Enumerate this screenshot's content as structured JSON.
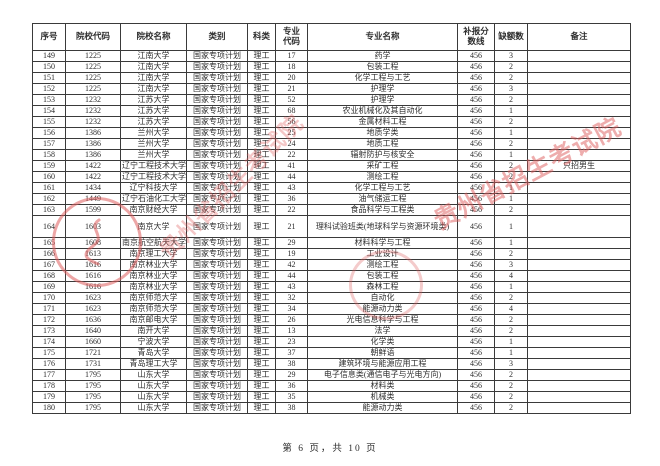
{
  "doc": {
    "page_footer": "第 6 页，共 10 页"
  },
  "watermark": {
    "stamp_text": "贵州省招生考试院",
    "stamp_color": "#de5c5c"
  },
  "table": {
    "columns": [
      {
        "key": "seq",
        "label": "序号"
      },
      {
        "key": "school_code",
        "label": "院校代码"
      },
      {
        "key": "school_name",
        "label": "院校名称"
      },
      {
        "key": "category",
        "label": "类别"
      },
      {
        "key": "subject_type",
        "label": "科类"
      },
      {
        "key": "major_code",
        "label": "专业代码"
      },
      {
        "key": "major_name",
        "label": "专业名称"
      },
      {
        "key": "cutoff_score",
        "label": "补报分数线"
      },
      {
        "key": "vacancy_count",
        "label": "缺额数"
      },
      {
        "key": "remark",
        "label": "备注"
      }
    ],
    "tall_rows": [
      "164"
    ],
    "rows": [
      [
        "149",
        "1225",
        "江南大学",
        "国家专项计划",
        "理工",
        "17",
        "药学",
        "456",
        "3",
        ""
      ],
      [
        "150",
        "1225",
        "江南大学",
        "国家专项计划",
        "理工",
        "18",
        "包装工程",
        "456",
        "2",
        ""
      ],
      [
        "151",
        "1225",
        "江南大学",
        "国家专项计划",
        "理工",
        "20",
        "化学工程与工艺",
        "456",
        "2",
        ""
      ],
      [
        "152",
        "1225",
        "江南大学",
        "国家专项计划",
        "理工",
        "21",
        "护理学",
        "456",
        "3",
        ""
      ],
      [
        "153",
        "1232",
        "江苏大学",
        "国家专项计划",
        "理工",
        "52",
        "护理学",
        "456",
        "2",
        ""
      ],
      [
        "154",
        "1232",
        "江苏大学",
        "国家专项计划",
        "理工",
        "68",
        "农业机械化及其自动化",
        "456",
        "1",
        ""
      ],
      [
        "155",
        "1232",
        "江苏大学",
        "国家专项计划",
        "理工",
        "56",
        "金属材料工程",
        "456",
        "2",
        ""
      ],
      [
        "156",
        "1386",
        "兰州大学",
        "国家专项计划",
        "理工",
        "25",
        "地质学类",
        "456",
        "1",
        ""
      ],
      [
        "157",
        "1386",
        "兰州大学",
        "国家专项计划",
        "理工",
        "24",
        "地质工程",
        "456",
        "2",
        ""
      ],
      [
        "158",
        "1386",
        "兰州大学",
        "国家专项计划",
        "理工",
        "22",
        "辐射防护与核安全",
        "456",
        "1",
        ""
      ],
      [
        "159",
        "1422",
        "辽宁工程技术大学",
        "国家专项计划",
        "理工",
        "41",
        "采矿工程",
        "456",
        "2",
        "只招男生"
      ],
      [
        "160",
        "1422",
        "辽宁工程技术大学",
        "国家专项计划",
        "理工",
        "44",
        "测绘工程",
        "456",
        "2",
        ""
      ],
      [
        "161",
        "1434",
        "辽宁科技大学",
        "国家专项计划",
        "理工",
        "43",
        "化学工程与工艺",
        "456",
        "1",
        ""
      ],
      [
        "162",
        "1449",
        "辽宁石油化工大学",
        "国家专项计划",
        "理工",
        "36",
        "油气储运工程",
        "456",
        "1",
        ""
      ],
      [
        "163",
        "1599",
        "南京财经大学",
        "国家专项计划",
        "理工",
        "22",
        "食品科学与工程类",
        "456",
        "2",
        ""
      ],
      [
        "164",
        "1603",
        "南京大学",
        "国家专项计划",
        "理工",
        "21",
        "理科试验班类(地球科学与资源环境类)",
        "456",
        "1",
        ""
      ],
      [
        "165",
        "1608",
        "南京航空航天大学",
        "国家专项计划",
        "理工",
        "29",
        "材料科学与工程",
        "456",
        "1",
        ""
      ],
      [
        "166",
        "1613",
        "南京理工大学",
        "国家专项计划",
        "理工",
        "19",
        "工业设计",
        "456",
        "2",
        ""
      ],
      [
        "167",
        "1616",
        "南京林业大学",
        "国家专项计划",
        "理工",
        "42",
        "测绘工程",
        "456",
        "3",
        ""
      ],
      [
        "168",
        "1616",
        "南京林业大学",
        "国家专项计划",
        "理工",
        "44",
        "包装工程",
        "456",
        "4",
        ""
      ],
      [
        "169",
        "1616",
        "南京林业大学",
        "国家专项计划",
        "理工",
        "43",
        "森林工程",
        "456",
        "1",
        ""
      ],
      [
        "170",
        "1623",
        "南京师范大学",
        "国家专项计划",
        "理工",
        "32",
        "自动化",
        "456",
        "2",
        ""
      ],
      [
        "171",
        "1623",
        "南京师范大学",
        "国家专项计划",
        "理工",
        "34",
        "能源动力类",
        "456",
        "4",
        ""
      ],
      [
        "172",
        "1636",
        "南京邮电大学",
        "国家专项计划",
        "理工",
        "26",
        "光电信息科学与工程",
        "456",
        "2",
        ""
      ],
      [
        "173",
        "1640",
        "南开大学",
        "国家专项计划",
        "理工",
        "13",
        "法学",
        "456",
        "2",
        ""
      ],
      [
        "174",
        "1660",
        "宁波大学",
        "国家专项计划",
        "理工",
        "23",
        "化学类",
        "456",
        "1",
        ""
      ],
      [
        "175",
        "1721",
        "青岛大学",
        "国家专项计划",
        "理工",
        "37",
        "朝鲜语",
        "456",
        "1",
        ""
      ],
      [
        "176",
        "1731",
        "青岛理工大学",
        "国家专项计划",
        "理工",
        "38",
        "建筑环境与能源应用工程",
        "456",
        "3",
        ""
      ],
      [
        "177",
        "1795",
        "山东大学",
        "国家专项计划",
        "理工",
        "29",
        "电子信息类(通信电子与光电方向)",
        "456",
        "2",
        ""
      ],
      [
        "178",
        "1795",
        "山东大学",
        "国家专项计划",
        "理工",
        "36",
        "材料类",
        "456",
        "2",
        ""
      ],
      [
        "179",
        "1795",
        "山东大学",
        "国家专项计划",
        "理工",
        "35",
        "机械类",
        "456",
        "2",
        ""
      ],
      [
        "180",
        "1795",
        "山东大学",
        "国家专项计划",
        "理工",
        "38",
        "能源动力类",
        "456",
        "2",
        ""
      ]
    ]
  }
}
